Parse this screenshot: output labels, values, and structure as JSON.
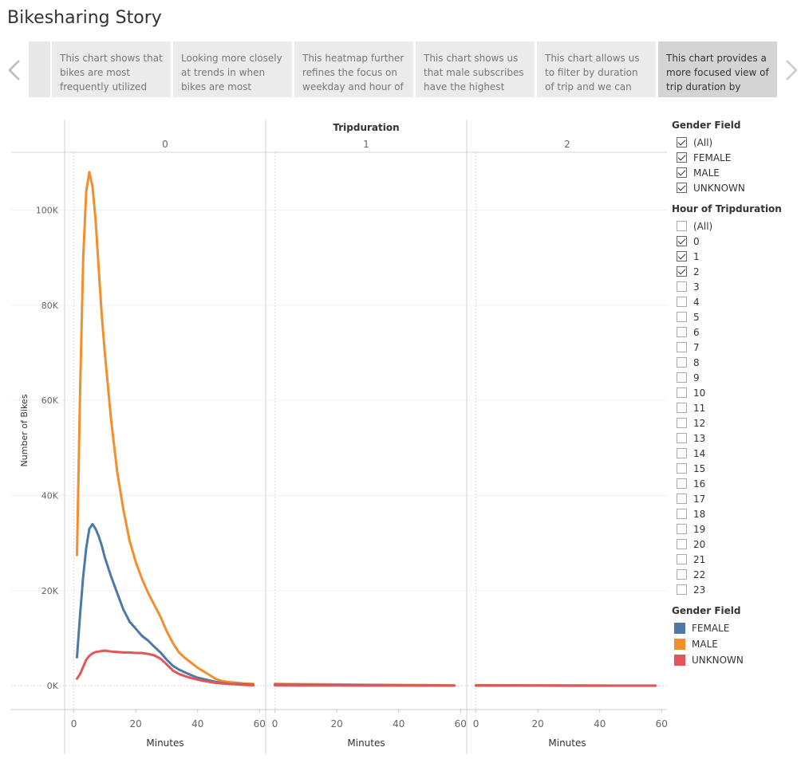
{
  "app": {
    "title": "Bikesharing Story"
  },
  "story": {
    "prev_label": "‹",
    "next_label": "›",
    "points": [
      {
        "text": "This chart shows that bikes are most frequently utilized",
        "active": false
      },
      {
        "text": "Looking more closely at trends in when bikes are most",
        "active": false
      },
      {
        "text": "This heatmap further refines the focus on weekday and hour of",
        "active": false
      },
      {
        "text": "This chart shows us that male subscribes have the highest",
        "active": false
      },
      {
        "text": "This chart allows us to filter by duration of trip and we can clearly",
        "active": false
      },
      {
        "text": "This chart provides a more focused view of trip duration by adding",
        "active": true
      }
    ]
  },
  "filters": {
    "gender": {
      "title": "Gender Field",
      "options": [
        {
          "label": "(All)",
          "checked": true
        },
        {
          "label": "FEMALE",
          "checked": true
        },
        {
          "label": "MALE",
          "checked": true
        },
        {
          "label": "UNKNOWN",
          "checked": true
        }
      ]
    },
    "hour": {
      "title": "Hour of Tripduration",
      "options": [
        {
          "label": "(All)",
          "checked": false
        },
        {
          "label": "0",
          "checked": true
        },
        {
          "label": "1",
          "checked": true
        },
        {
          "label": "2",
          "checked": true
        },
        {
          "label": "3",
          "checked": false
        },
        {
          "label": "4",
          "checked": false
        },
        {
          "label": "5",
          "checked": false
        },
        {
          "label": "6",
          "checked": false
        },
        {
          "label": "7",
          "checked": false
        },
        {
          "label": "8",
          "checked": false
        },
        {
          "label": "9",
          "checked": false
        },
        {
          "label": "10",
          "checked": false
        },
        {
          "label": "11",
          "checked": false
        },
        {
          "label": "12",
          "checked": false
        },
        {
          "label": "13",
          "checked": false
        },
        {
          "label": "14",
          "checked": false
        },
        {
          "label": "15",
          "checked": false
        },
        {
          "label": "16",
          "checked": false
        },
        {
          "label": "17",
          "checked": false
        },
        {
          "label": "18",
          "checked": false
        },
        {
          "label": "19",
          "checked": false
        },
        {
          "label": "20",
          "checked": false
        },
        {
          "label": "21",
          "checked": false
        },
        {
          "label": "22",
          "checked": false
        },
        {
          "label": "23",
          "checked": false
        }
      ]
    }
  },
  "color_legend": {
    "title": "Gender Field",
    "items": [
      {
        "label": "FEMALE",
        "color": "#4e79a7"
      },
      {
        "label": "MALE",
        "color": "#f28e2b"
      },
      {
        "label": "UNKNOWN",
        "color": "#e15759"
      }
    ]
  },
  "chart_data": {
    "type": "line",
    "title": "",
    "facet_label": "Tripduration",
    "ylabel": "Number of Bikes",
    "xlabel": "Minutes",
    "ylim": [
      -5000,
      114000
    ],
    "yticks": [
      0,
      20000,
      40000,
      60000,
      80000,
      100000
    ],
    "ytick_labels": [
      "0K",
      "20K",
      "40K",
      "60K",
      "80K",
      "100K"
    ],
    "xlim": [
      -3,
      62
    ],
    "xticks": [
      0,
      20,
      40,
      60
    ],
    "grid": true,
    "legend": "right",
    "panels": [
      {
        "label": "0",
        "series": [
          {
            "name": "MALE",
            "color": "#f28e2b",
            "x": [
              1,
              2,
              3,
              4,
              5,
              6,
              7,
              8,
              9,
              10,
              12,
              14,
              16,
              18,
              20,
              22,
              24,
              26,
              28,
              30,
              32,
              34,
              36,
              38,
              40,
              42,
              44,
              46,
              48,
              50,
              55,
              58
            ],
            "y": [
              27500,
              62000,
              90000,
              104000,
              108000,
              105000,
              98000,
              88000,
              78000,
              70000,
              56000,
              45000,
              37000,
              30500,
              26000,
              22500,
              19500,
              17000,
              14500,
              11500,
              9000,
              7000,
              5800,
              4800,
              3800,
              3000,
              2200,
              1400,
              1000,
              800,
              500,
              400
            ]
          },
          {
            "name": "FEMALE",
            "color": "#4e79a7",
            "x": [
              1,
              2,
              3,
              4,
              5,
              6,
              7,
              8,
              9,
              10,
              12,
              14,
              16,
              18,
              20,
              22,
              24,
              26,
              28,
              30,
              32,
              34,
              36,
              38,
              40,
              42,
              44,
              46,
              48,
              50,
              55,
              58
            ],
            "y": [
              6000,
              15000,
              23000,
              29000,
              33000,
              34000,
              33000,
              31500,
              29500,
              27000,
              23000,
              19500,
              16000,
              13500,
              12000,
              10500,
              9500,
              8200,
              7000,
              5500,
              4200,
              3400,
              2800,
              2200,
              1700,
              1400,
              1100,
              800,
              600,
              400,
              300,
              200
            ]
          },
          {
            "name": "UNKNOWN",
            "color": "#e15759",
            "x": [
              1,
              2,
              3,
              4,
              5,
              6,
              7,
              8,
              9,
              10,
              12,
              14,
              16,
              18,
              20,
              22,
              24,
              26,
              28,
              30,
              32,
              34,
              36,
              38,
              40,
              42,
              44,
              46,
              48,
              50,
              55,
              58
            ],
            "y": [
              1500,
              2500,
              4000,
              5500,
              6300,
              6800,
              7100,
              7200,
              7300,
              7400,
              7200,
              7100,
              7000,
              7000,
              6900,
              6900,
              6700,
              6400,
              5700,
              4500,
              3200,
              2500,
              2000,
              1600,
              1300,
              1000,
              800,
              600,
              500,
              400,
              200,
              100
            ]
          }
        ]
      },
      {
        "label": "1",
        "series": [
          {
            "name": "MALE",
            "color": "#f28e2b",
            "x": [
              0,
              10,
              20,
              30,
              40,
              50,
              58
            ],
            "y": [
              400,
              350,
              300,
              250,
              200,
              150,
              100
            ]
          },
          {
            "name": "FEMALE",
            "color": "#4e79a7",
            "x": [
              0,
              10,
              20,
              30,
              40,
              50,
              58
            ],
            "y": [
              250,
              200,
              150,
              100,
              80,
              60,
              50
            ]
          },
          {
            "name": "UNKNOWN",
            "color": "#e15759",
            "x": [
              0,
              10,
              20,
              30,
              40,
              50,
              58
            ],
            "y": [
              100,
              80,
              60,
              50,
              40,
              30,
              20
            ]
          }
        ]
      },
      {
        "label": "2",
        "series": [
          {
            "name": "MALE",
            "color": "#f28e2b",
            "x": [
              0,
              10,
              20,
              30,
              40,
              50,
              58
            ],
            "y": [
              150,
              120,
              100,
              80,
              60,
              50,
              40
            ]
          },
          {
            "name": "FEMALE",
            "color": "#4e79a7",
            "x": [
              0,
              10,
              20,
              30,
              40,
              50,
              58
            ],
            "y": [
              80,
              60,
              50,
              40,
              30,
              20,
              20
            ]
          },
          {
            "name": "UNKNOWN",
            "color": "#e15759",
            "x": [
              0,
              10,
              20,
              30,
              40,
              50,
              58
            ],
            "y": [
              30,
              20,
              20,
              10,
              10,
              10,
              10
            ]
          }
        ]
      }
    ]
  }
}
